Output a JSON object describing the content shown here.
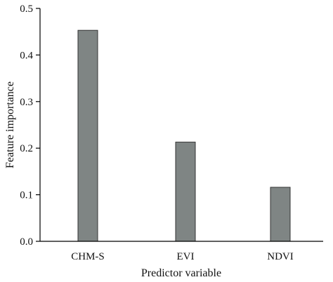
{
  "chart_data": {
    "type": "bar",
    "title": "",
    "xlabel": "Predictor variable",
    "ylabel": "Feature importance",
    "categories": [
      "CHM-S",
      "EVI",
      "NDVI"
    ],
    "values": [
      0.453,
      0.213,
      0.116
    ],
    "ylim": [
      0,
      0.5
    ],
    "yticks": [
      "0.0",
      "0.1",
      "0.2",
      "0.3",
      "0.4",
      "0.5"
    ],
    "grid": false,
    "bar_color": "#7f8584"
  }
}
